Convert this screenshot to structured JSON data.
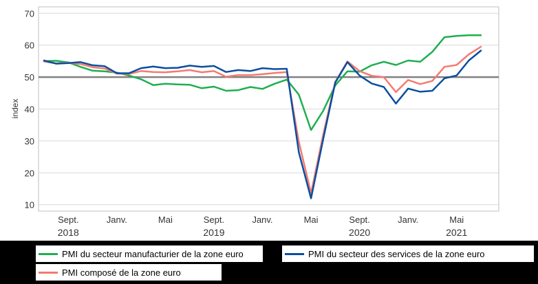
{
  "chart_data": {
    "type": "line",
    "ylabel": "index",
    "ylim": [
      8,
      72
    ],
    "yticks": [
      10,
      20,
      30,
      40,
      50,
      60,
      70
    ],
    "reference_line": 50,
    "x_tick_labels": [
      {
        "index": 2,
        "label": "Sept."
      },
      {
        "index": 6,
        "label": "Janv."
      },
      {
        "index": 10,
        "label": "Mai"
      },
      {
        "index": 14,
        "label": "Sept."
      },
      {
        "index": 18,
        "label": "Janv."
      },
      {
        "index": 22,
        "label": "Mai"
      },
      {
        "index": 26,
        "label": "Sept."
      },
      {
        "index": 30,
        "label": "Janv."
      },
      {
        "index": 34,
        "label": "Mai"
      }
    ],
    "year_labels": [
      {
        "index": 2,
        "label": "2018"
      },
      {
        "index": 14,
        "label": "2019"
      },
      {
        "index": 26,
        "label": "2020"
      },
      {
        "index": 34,
        "label": "2021"
      }
    ],
    "x": [
      "2018-06",
      "2018-07",
      "2018-08",
      "2018-09",
      "2018-10",
      "2018-11",
      "2018-12",
      "2019-01",
      "2019-02",
      "2019-03",
      "2019-04",
      "2019-05",
      "2019-06",
      "2019-07",
      "2019-08",
      "2019-09",
      "2019-10",
      "2019-11",
      "2019-12",
      "2020-01",
      "2020-02",
      "2020-03",
      "2020-04",
      "2020-05",
      "2020-06",
      "2020-07",
      "2020-08",
      "2020-09",
      "2020-10",
      "2020-11",
      "2020-12",
      "2021-01",
      "2021-02",
      "2021-03",
      "2021-04",
      "2021-05",
      "2021-06"
    ],
    "series": [
      {
        "name": "PMI du secteur manufacturier de la zone euro",
        "color": "#1fae4f",
        "values": [
          55.0,
          55.1,
          54.6,
          53.2,
          52.0,
          51.8,
          51.4,
          50.5,
          49.3,
          47.5,
          47.9,
          47.7,
          47.6,
          46.5,
          47.0,
          45.7,
          45.9,
          46.9,
          46.3,
          47.9,
          49.2,
          44.5,
          33.4,
          39.4,
          47.4,
          51.8,
          51.7,
          53.7,
          54.8,
          53.8,
          55.2,
          54.8,
          57.9,
          62.5,
          62.9,
          63.1,
          63.1
        ]
      },
      {
        "name": "PMI du secteur des services de la zone euro",
        "color": "#0a4ea0",
        "values": [
          55.2,
          54.2,
          54.4,
          54.7,
          53.7,
          53.4,
          51.2,
          51.2,
          52.8,
          53.3,
          52.8,
          52.9,
          53.6,
          53.2,
          53.5,
          51.6,
          52.2,
          51.9,
          52.8,
          52.5,
          52.6,
          26.4,
          12.0,
          30.5,
          48.3,
          54.7,
          50.5,
          48.0,
          46.9,
          41.7,
          46.4,
          45.4,
          45.7,
          49.6,
          50.5,
          55.2,
          58.3
        ]
      },
      {
        "name": "PMI composé de la zone euro",
        "color": "#f47a6f",
        "values": [
          54.9,
          54.3,
          54.5,
          54.1,
          53.1,
          52.7,
          51.1,
          51.0,
          51.9,
          51.6,
          51.5,
          51.8,
          52.2,
          51.5,
          51.9,
          50.1,
          50.6,
          50.6,
          50.9,
          51.3,
          51.6,
          29.7,
          13.6,
          31.9,
          48.5,
          54.9,
          51.9,
          50.4,
          50.0,
          45.3,
          49.1,
          47.8,
          48.8,
          53.2,
          53.8,
          57.1,
          59.5
        ]
      }
    ]
  },
  "legend": {
    "manufacturing": {
      "label": "PMI du secteur manufacturier de la zone euro",
      "color": "#1fae4f"
    },
    "services": {
      "label": "PMI du secteur des services de la zone euro",
      "color": "#0a4ea0"
    },
    "composite": {
      "label": "PMI composé de la zone euro",
      "color": "#f47a6f"
    }
  }
}
